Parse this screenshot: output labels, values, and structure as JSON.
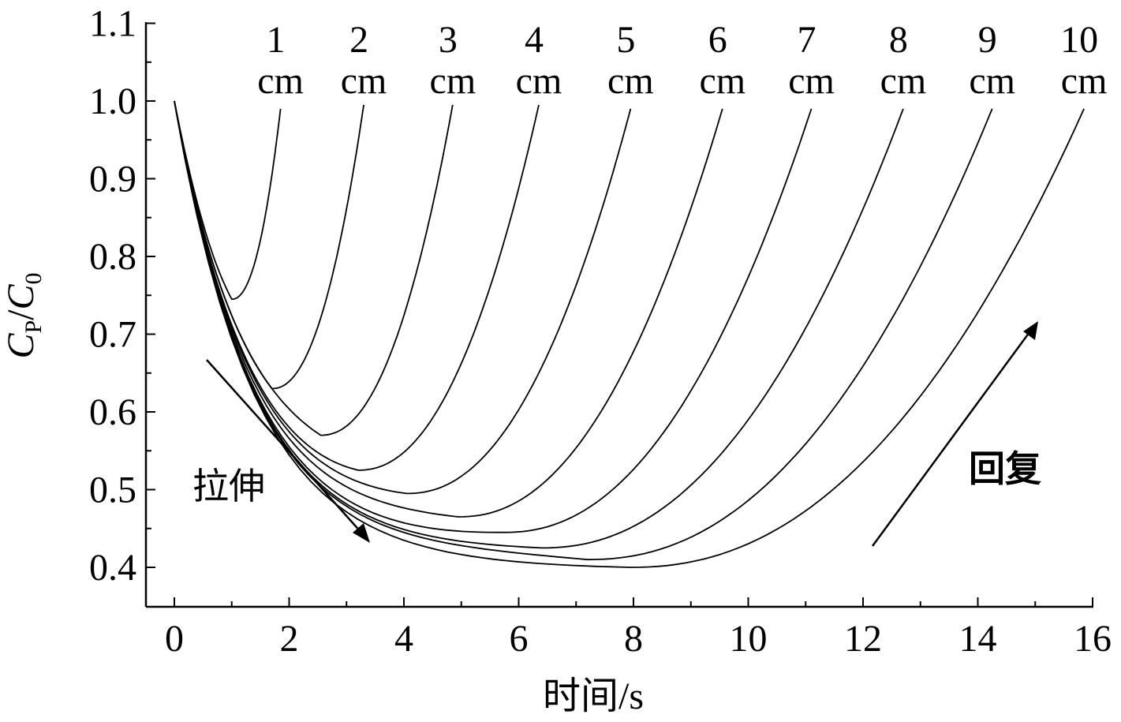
{
  "chart_data": {
    "type": "line",
    "title": "",
    "xlabel": "时间/s",
    "ylabel": {
      "num": "C",
      "num_sub": "P",
      "den": "C",
      "den_sub": "0"
    },
    "xlim": [
      -0.5,
      16
    ],
    "ylim": [
      0.35,
      1.1
    ],
    "xticks": [
      0,
      2,
      4,
      6,
      8,
      10,
      12,
      14,
      16
    ],
    "xtick_labels": [
      "0",
      "2",
      "4",
      "6",
      "8",
      "10",
      "12",
      "14",
      "16"
    ],
    "yticks": [
      0.4,
      0.5,
      0.6,
      0.7,
      0.8,
      0.9,
      1.0,
      1.1
    ],
    "ytick_labels": [
      "0.4",
      "0.5",
      "0.6",
      "0.7",
      "0.8",
      "0.9",
      "1.0",
      "1.1"
    ],
    "grid": false,
    "legend": "none",
    "series": [
      {
        "name": "1 cm",
        "turn": [
          1.0,
          0.745
        ],
        "end": [
          1.85,
          0.99
        ]
      },
      {
        "name": "2 cm",
        "turn": [
          1.7,
          0.63
        ],
        "end": [
          3.3,
          0.995
        ]
      },
      {
        "name": "3 cm",
        "turn": [
          2.55,
          0.57
        ],
        "end": [
          4.85,
          0.995
        ]
      },
      {
        "name": "4 cm",
        "turn": [
          3.2,
          0.525
        ],
        "end": [
          6.35,
          0.995
        ]
      },
      {
        "name": "5 cm",
        "turn": [
          4.05,
          0.495
        ],
        "end": [
          7.95,
          0.99
        ]
      },
      {
        "name": "6 cm",
        "turn": [
          4.95,
          0.465
        ],
        "end": [
          9.55,
          0.99
        ]
      },
      {
        "name": "7 cm",
        "turn": [
          5.75,
          0.445
        ],
        "end": [
          11.1,
          0.99
        ]
      },
      {
        "name": "8 cm",
        "turn": [
          6.4,
          0.425
        ],
        "end": [
          12.7,
          0.99
        ]
      },
      {
        "name": "9 cm",
        "turn": [
          7.2,
          0.41
        ],
        "end": [
          14.25,
          0.99
        ]
      },
      {
        "name": "10 cm",
        "turn": [
          7.95,
          0.4
        ],
        "end": [
          15.85,
          0.99
        ]
      }
    ],
    "series_labels": [
      {
        "num": "1",
        "unit": "cm"
      },
      {
        "num": "2",
        "unit": "cm"
      },
      {
        "num": "3",
        "unit": "cm"
      },
      {
        "num": "4",
        "unit": "cm"
      },
      {
        "num": "5",
        "unit": "cm"
      },
      {
        "num": "6",
        "unit": "cm"
      },
      {
        "num": "7",
        "unit": "cm"
      },
      {
        "num": "8",
        "unit": "cm"
      },
      {
        "num": "9",
        "unit": "cm"
      },
      {
        "num": "10",
        "unit": "cm"
      }
    ],
    "annotations": [
      {
        "text": "拉伸",
        "direction": "down-right"
      },
      {
        "text": "回复",
        "direction": "up-right"
      }
    ]
  }
}
